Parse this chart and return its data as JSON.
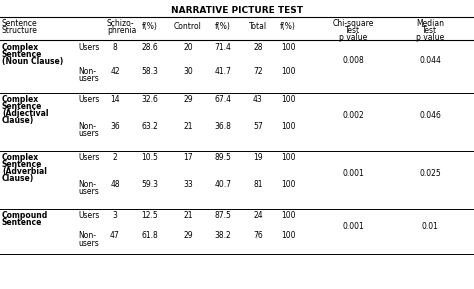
{
  "title": "NARRATIVE PICTURE TEST",
  "bg_color": "#ffffff",
  "font_color": "#000000",
  "sections": [
    {
      "sentence_lines": [
        "Complex",
        "Sentence",
        "(Noun Clause)"
      ],
      "users_data": [
        "8",
        "28.6",
        "20",
        "71.4",
        "28",
        "100"
      ],
      "nonusers_data": [
        "42",
        "58.3",
        "30",
        "41.7",
        "72",
        "100"
      ],
      "chi_sq": "0.008",
      "median": "0.044"
    },
    {
      "sentence_lines": [
        "Complex",
        "Sentence",
        "(Adjectival",
        "Clause)"
      ],
      "users_data": [
        "14",
        "32.6",
        "29",
        "67.4",
        "43",
        "100"
      ],
      "nonusers_data": [
        "36",
        "63.2",
        "21",
        "36.8",
        "57",
        "100"
      ],
      "chi_sq": "0.002",
      "median": "0.046"
    },
    {
      "sentence_lines": [
        "Complex",
        "Sentence",
        "(Adverbial",
        "Clause)"
      ],
      "users_data": [
        "2",
        "10.5",
        "17",
        "89.5",
        "19",
        "100"
      ],
      "nonusers_data": [
        "48",
        "59.3",
        "33",
        "40.7",
        "81",
        "100"
      ],
      "chi_sq": "0.001",
      "median": "0.025"
    },
    {
      "sentence_lines": [
        "Compound",
        "Sentence"
      ],
      "users_data": [
        "3",
        "12.5",
        "21",
        "87.5",
        "24",
        "100"
      ],
      "nonusers_data": [
        "47",
        "61.8",
        "29",
        "38.2",
        "76",
        "100"
      ],
      "chi_sq": "0.001",
      "median": "0.01"
    }
  ]
}
